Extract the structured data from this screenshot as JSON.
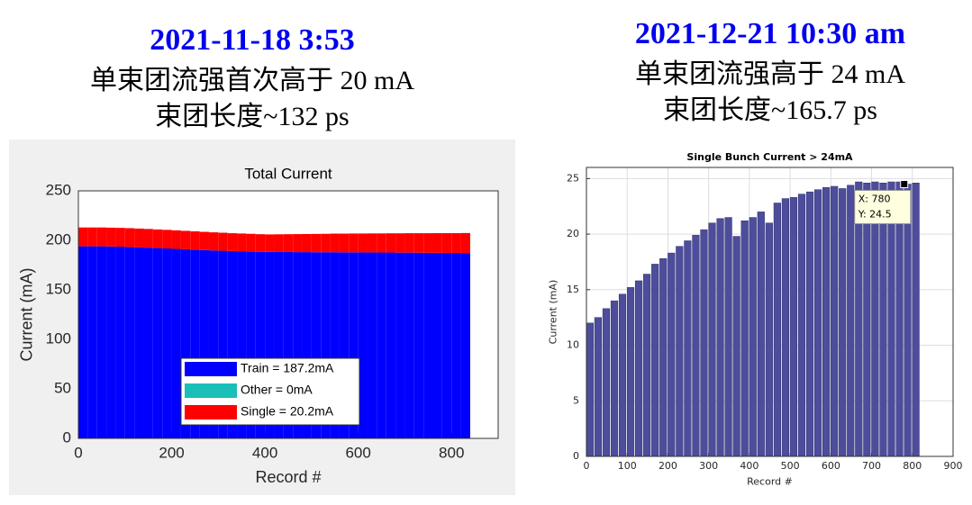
{
  "chart_data": [
    {
      "type": "bar",
      "stacked": true,
      "annotations": [
        "2021-11-18 3:53",
        "单束团流强首次高于 20 mA",
        "束团长度~132 ps"
      ],
      "title": "Total Current",
      "x_label": "Record #",
      "y_label": "Current (mA)",
      "x": [
        0,
        20,
        40,
        60,
        80,
        100,
        120,
        140,
        160,
        180,
        200,
        220,
        240,
        260,
        280,
        300,
        320,
        340,
        360,
        380,
        400,
        420,
        440,
        460,
        480,
        500,
        520,
        540,
        560,
        580,
        600,
        620,
        640,
        660,
        680,
        700,
        720,
        740,
        760,
        780,
        800,
        820
      ],
      "series": [
        {
          "name": "Train = 187.2mA",
          "color": "#0000ff",
          "values": [
            194,
            194,
            194,
            193.8,
            193.6,
            193.3,
            193,
            192.6,
            192.2,
            191.8,
            191.4,
            191,
            190.6,
            190.2,
            189.8,
            189.5,
            189.2,
            189,
            188.8,
            188.5,
            188.3,
            188.2,
            188.2,
            188.1,
            188.1,
            188,
            188,
            188,
            187.9,
            187.9,
            187.8,
            187.8,
            187.7,
            187.7,
            187.6,
            187.6,
            187.5,
            187.4,
            187.4,
            187.3,
            187.3,
            187.2
          ]
        },
        {
          "name": "Other = 0mA",
          "color": "#1abfb8",
          "values": [
            0,
            0,
            0,
            0,
            0,
            0,
            0,
            0,
            0,
            0,
            0,
            0,
            0,
            0,
            0,
            0,
            0,
            0,
            0,
            0,
            0,
            0,
            0,
            0,
            0,
            0,
            0,
            0,
            0,
            0,
            0,
            0,
            0,
            0,
            0,
            0,
            0,
            0,
            0,
            0,
            0,
            0
          ]
        },
        {
          "name": "Single = 20.2mA",
          "color": "#ff0000",
          "values": [
            19,
            19,
            19,
            19,
            19,
            19,
            18.9,
            18.9,
            18.8,
            18.8,
            18.7,
            18.6,
            18.5,
            18.4,
            18.3,
            18.2,
            18,
            17.9,
            17.8,
            17.7,
            17.7,
            17.9,
            18,
            18.2,
            18.3,
            18.5,
            18.6,
            18.8,
            18.9,
            19,
            19.1,
            19.2,
            19.3,
            19.4,
            19.5,
            19.6,
            19.7,
            19.8,
            19.9,
            20,
            20,
            20.2
          ]
        }
      ],
      "xlim": [
        0,
        900
      ],
      "xticks": [
        0,
        200,
        400,
        600,
        800
      ],
      "ylim": [
        0,
        250
      ],
      "yticks": [
        0,
        50,
        100,
        150,
        200,
        250
      ],
      "grid": false,
      "legend": "lower center"
    },
    {
      "type": "bar",
      "annotations": [
        "2021-12-21 10:30 am",
        "单束团流强高于 24 mA",
        "束团长度~165.7 ps"
      ],
      "title": "Single Bunch Current > 24mA",
      "x_label": "Record #",
      "y_label": "Current (mA)",
      "x": [
        0,
        20,
        40,
        60,
        80,
        100,
        120,
        140,
        160,
        180,
        200,
        220,
        240,
        260,
        280,
        300,
        320,
        340,
        360,
        380,
        400,
        420,
        440,
        460,
        480,
        500,
        520,
        540,
        560,
        580,
        600,
        620,
        640,
        660,
        680,
        700,
        720,
        740,
        760,
        780,
        800
      ],
      "values": [
        12,
        12.5,
        13.3,
        14,
        14.6,
        15.2,
        15.8,
        16.4,
        17.3,
        17.8,
        18.3,
        18.9,
        19.4,
        19.9,
        20.4,
        21,
        21.4,
        21.5,
        19.8,
        21.2,
        21.5,
        22,
        21,
        22.8,
        23.2,
        23.3,
        23.6,
        23.8,
        24,
        24.2,
        24.3,
        24.1,
        24.4,
        24.7,
        24.6,
        24.7,
        24.6,
        24.7,
        24.7,
        24.5,
        24.6
      ],
      "color": "#4d4d9c",
      "datatip": {
        "x": 780,
        "y": 24.5,
        "labels": [
          "X: 780",
          "Y: 24.5"
        ]
      },
      "xlim": [
        0,
        900
      ],
      "xticks": [
        0,
        100,
        200,
        300,
        400,
        500,
        600,
        700,
        800,
        900
      ],
      "ylim": [
        0,
        26
      ],
      "yticks": [
        0,
        5,
        10,
        15,
        20,
        25
      ],
      "grid": true
    }
  ]
}
